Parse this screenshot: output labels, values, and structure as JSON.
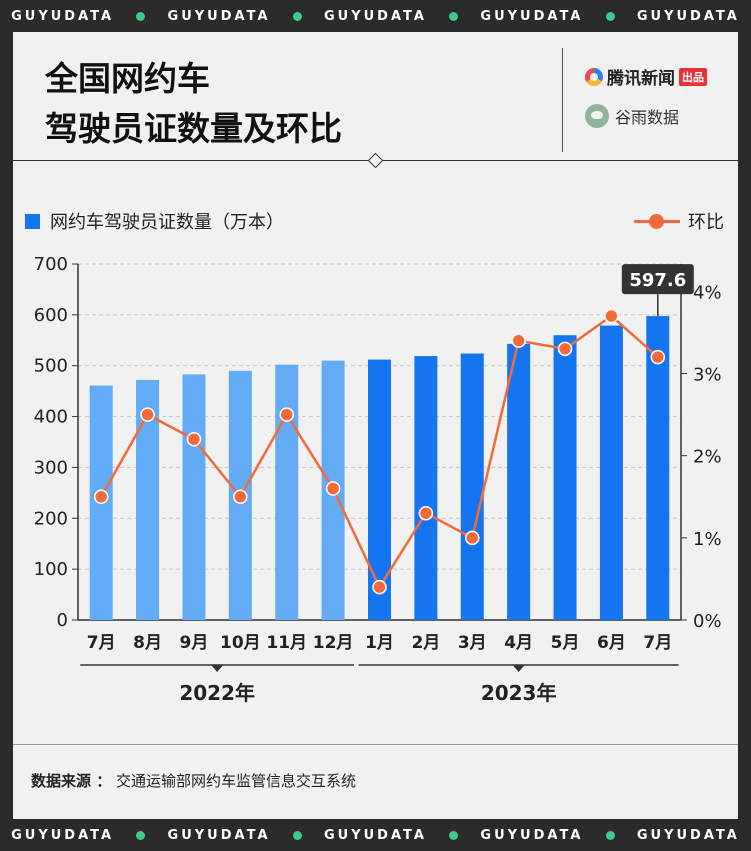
{
  "brand_band": {
    "word": "GUYUDATA"
  },
  "header": {
    "title_line1": "全国网约车",
    "title_line2": "驾驶员证数量及环比",
    "brand1_text": "腾讯新闻",
    "brand1_tag": "出品",
    "brand2_text": "谷雨数据"
  },
  "legend": {
    "bar_label": "网约车驾驶员证数量（万本）",
    "line_label": "环比"
  },
  "footer": {
    "source_label": "数据来源 ：",
    "source_text": "交通运输部网约车监管信息交互系统"
  },
  "colors": {
    "bar_2022": "#64abf6",
    "bar_2023": "#1575f0",
    "line": "#f26a3a",
    "callout_bg": "#333333"
  },
  "chart_data": {
    "type": "bar",
    "categories": [
      "7月",
      "8月",
      "9月",
      "10月",
      "11月",
      "12月",
      "1月",
      "2月",
      "3月",
      "4月",
      "5月",
      "6月",
      "7月"
    ],
    "groups": [
      {
        "label": "2022年",
        "from": 0,
        "to": 5
      },
      {
        "label": "2023年",
        "from": 6,
        "to": 12
      }
    ],
    "series": [
      {
        "name": "网约车驾驶员证数量（万本）",
        "type": "bar",
        "axis": "left",
        "values": [
          461,
          472,
          483,
          490,
          502,
          510,
          512,
          519,
          524,
          543,
          560,
          579,
          597.6
        ]
      },
      {
        "name": "环比",
        "type": "line",
        "axis": "right",
        "values": [
          1.5,
          2.5,
          2.2,
          1.5,
          2.5,
          1.6,
          0.4,
          1.3,
          1.0,
          3.4,
          3.3,
          3.7,
          3.2
        ]
      }
    ],
    "y_left": {
      "min": 0,
      "max": 700,
      "ticks": [
        "0",
        "100",
        "200",
        "300",
        "400",
        "500",
        "600",
        "700"
      ]
    },
    "y_right": {
      "min": 0,
      "max": 4.333,
      "ticks": [
        "0%",
        "1%",
        "2%",
        "3%",
        "4%"
      ],
      "tick_values": [
        0,
        1,
        2,
        3,
        4
      ]
    },
    "callout": {
      "index": 12,
      "text": "597.6"
    },
    "grid": true
  }
}
